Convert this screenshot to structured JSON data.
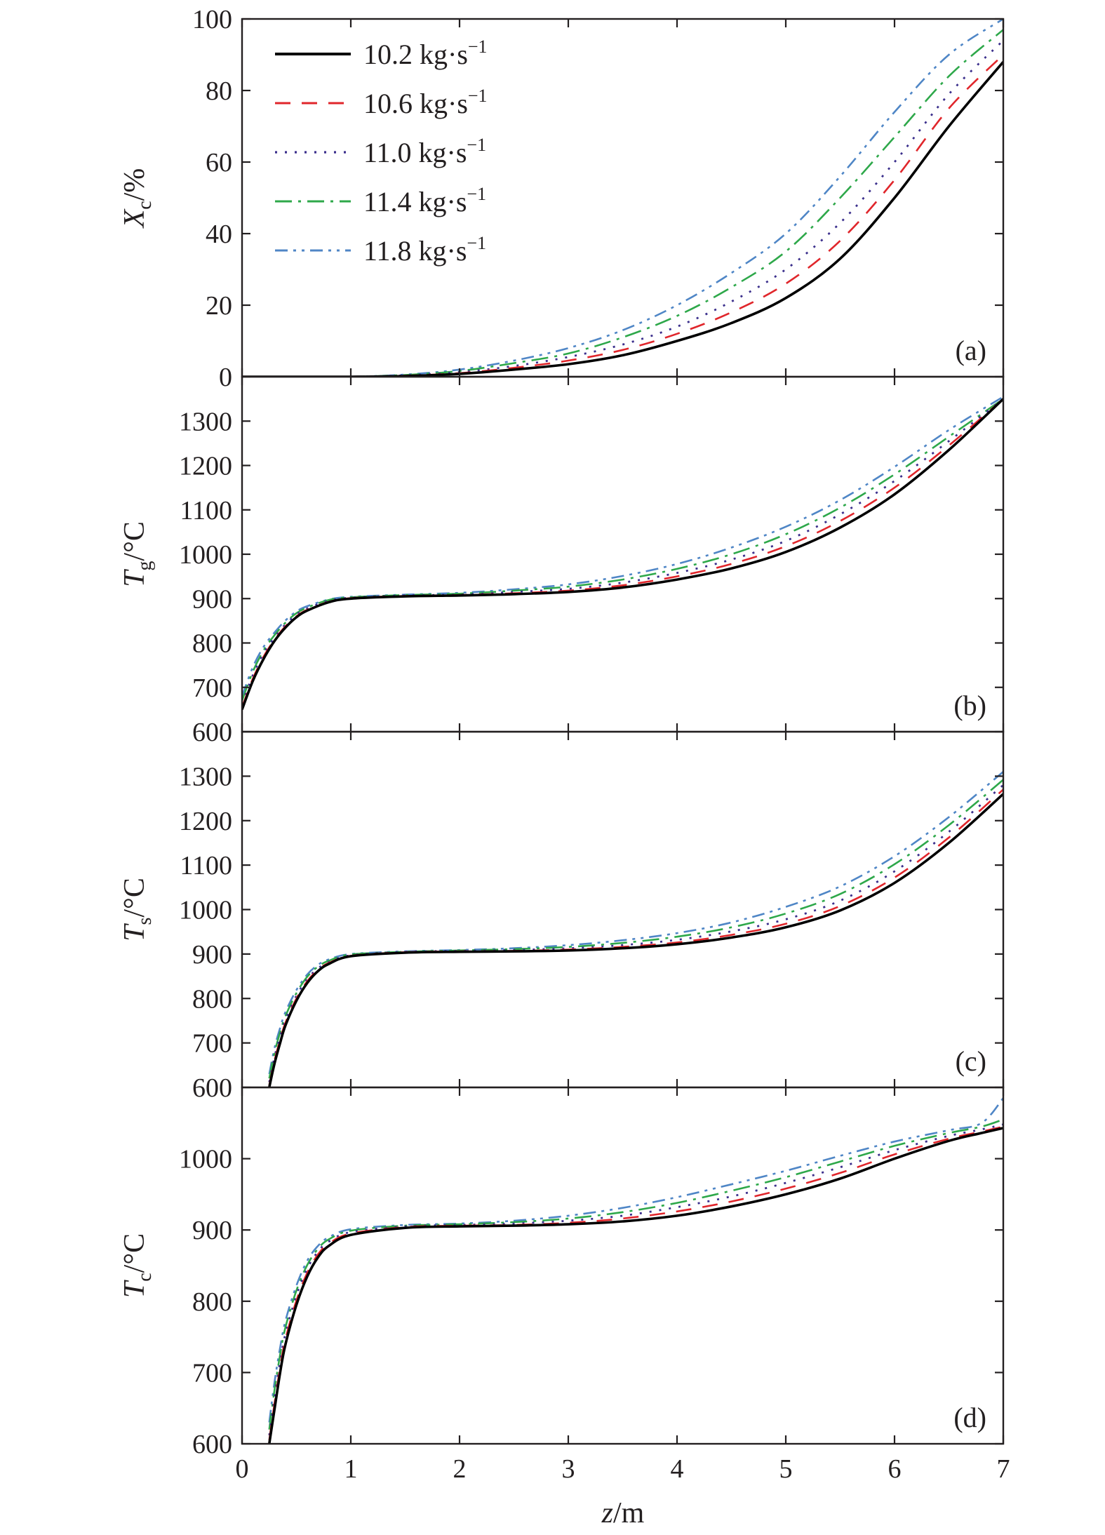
{
  "figure": {
    "xlabel_italic": "z",
    "xlabel_unit": "/m"
  },
  "legend": [
    {
      "value": "10.2 kg·s",
      "exp": "−1"
    },
    {
      "value": "10.6 kg·s",
      "exp": "−1"
    },
    {
      "value": "11.0 kg·s",
      "exp": "−1"
    },
    {
      "value": "11.4 kg·s",
      "exp": "−1"
    },
    {
      "value": "11.8 kg·s",
      "exp": "−1"
    }
  ],
  "colors": {
    "axis": "#231f20",
    "series": [
      "#000000",
      "#e0262b",
      "#3b2f8c",
      "#2ea84a",
      "#4f86c6"
    ]
  },
  "chart_data": [
    {
      "type": "line",
      "panel_label": "(a)",
      "ylabel": {
        "main": "X",
        "sub": "c",
        "unit": "/%"
      },
      "xlim": [
        0,
        7
      ],
      "ylim": [
        0,
        100
      ],
      "xticks": [
        0,
        1,
        2,
        3,
        4,
        5,
        6,
        7
      ],
      "yticks": [
        0,
        20,
        40,
        60,
        80,
        100
      ],
      "x": [
        0,
        0.5,
        1,
        1.5,
        2,
        2.5,
        3,
        3.5,
        4,
        4.5,
        5,
        5.5,
        6,
        6.5,
        7
      ],
      "series": [
        {
          "name": "10.2 kg·s−1",
          "values": [
            0,
            0,
            0,
            0.2,
            0.8,
            2,
            3.5,
            6,
            10,
            15,
            22,
            33,
            50,
            70,
            88
          ]
        },
        {
          "name": "10.6 kg·s−1",
          "values": [
            0,
            0,
            0,
            0.3,
            1.0,
            2.5,
            4.5,
            7.5,
            12,
            18,
            26,
            38,
            55,
            75,
            90
          ]
        },
        {
          "name": "11.0 kg·s−1",
          "values": [
            0,
            0,
            0,
            0.4,
            1.3,
            3,
            5.5,
            9,
            14,
            21,
            30,
            43,
            60,
            79,
            94
          ]
        },
        {
          "name": "11.4 kg·s−1",
          "values": [
            0,
            0,
            0,
            0.5,
            1.6,
            3.8,
            6.5,
            11,
            17,
            25,
            35,
            50,
            67,
            84,
            97
          ]
        },
        {
          "name": "11.8 kg·s−1",
          "values": [
            0,
            0,
            0,
            0.6,
            2.0,
            4.5,
            8,
            13,
            20,
            29,
            40,
            56,
            74,
            90,
            100
          ]
        }
      ]
    },
    {
      "type": "line",
      "panel_label": "(b)",
      "ylabel": {
        "main": "T",
        "sub": "g",
        "unit": "/°C"
      },
      "xlim": [
        0,
        7
      ],
      "ylim": [
        600,
        1400
      ],
      "xticks": [
        0,
        1,
        2,
        3,
        4,
        5,
        6,
        7
      ],
      "yticks": [
        600,
        700,
        800,
        900,
        1000,
        1100,
        1200,
        1300
      ],
      "x": [
        0,
        0.1,
        0.2,
        0.3,
        0.4,
        0.5,
        0.6,
        0.8,
        1.0,
        1.5,
        2,
        2.5,
        3,
        3.5,
        4,
        4.5,
        5,
        5.5,
        6,
        6.5,
        7
      ],
      "series": [
        {
          "name": "10.2 kg·s−1",
          "values": [
            650,
            715,
            765,
            805,
            835,
            858,
            873,
            892,
            900,
            905,
            907,
            910,
            915,
            925,
            943,
            968,
            1005,
            1060,
            1135,
            1235,
            1350
          ]
        },
        {
          "name": "10.6 kg·s−1",
          "values": [
            655,
            720,
            770,
            808,
            838,
            860,
            875,
            893,
            901,
            906,
            908,
            912,
            918,
            930,
            950,
            978,
            1018,
            1075,
            1150,
            1245,
            1350
          ]
        },
        {
          "name": "11.0 kg·s−1",
          "values": [
            662,
            728,
            777,
            813,
            842,
            864,
            878,
            895,
            902,
            907,
            909,
            915,
            922,
            936,
            958,
            988,
            1030,
            1090,
            1165,
            1255,
            1350
          ]
        },
        {
          "name": "11.4 kg·s−1",
          "values": [
            670,
            736,
            784,
            818,
            846,
            867,
            880,
            897,
            903,
            908,
            911,
            918,
            927,
            943,
            967,
            1000,
            1045,
            1105,
            1180,
            1265,
            1350
          ]
        },
        {
          "name": "11.8 kg·s−1",
          "values": [
            680,
            746,
            792,
            824,
            851,
            871,
            883,
            898,
            904,
            909,
            913,
            921,
            932,
            951,
            978,
            1015,
            1062,
            1122,
            1197,
            1280,
            1355
          ]
        }
      ]
    },
    {
      "type": "line",
      "panel_label": "(c)",
      "ylabel": {
        "main": "T",
        "sub": "s",
        "unit": "/°C"
      },
      "xlim": [
        0,
        7
      ],
      "ylim": [
        600,
        1400
      ],
      "xticks": [
        0,
        1,
        2,
        3,
        4,
        5,
        6,
        7
      ],
      "yticks": [
        600,
        700,
        800,
        900,
        1000,
        1100,
        1200,
        1300
      ],
      "x": [
        0.25,
        0.3,
        0.35,
        0.4,
        0.5,
        0.6,
        0.7,
        0.8,
        1.0,
        1.5,
        2,
        2.5,
        3,
        3.5,
        4,
        4.5,
        5,
        5.5,
        6,
        6.5,
        7
      ],
      "series": [
        {
          "name": "10.2 kg·s−1",
          "values": [
            600,
            655,
            700,
            740,
            795,
            835,
            862,
            878,
            895,
            903,
            905,
            906,
            908,
            913,
            922,
            937,
            960,
            998,
            1060,
            1150,
            1260
          ]
        },
        {
          "name": "10.6 kg·s−1",
          "values": [
            605,
            662,
            707,
            746,
            800,
            839,
            865,
            880,
            896,
            904,
            906,
            907,
            910,
            916,
            926,
            943,
            968,
            1008,
            1072,
            1162,
            1270
          ]
        },
        {
          "name": "11.0 kg·s−1",
          "values": [
            612,
            670,
            715,
            753,
            806,
            844,
            868,
            882,
            897,
            905,
            907,
            909,
            913,
            920,
            932,
            951,
            978,
            1020,
            1086,
            1175,
            1280
          ]
        },
        {
          "name": "11.4 kg·s−1",
          "values": [
            620,
            679,
            724,
            761,
            812,
            849,
            872,
            885,
            899,
            905,
            908,
            911,
            916,
            925,
            939,
            960,
            991,
            1035,
            1102,
            1190,
            1292
          ]
        },
        {
          "name": "11.8 kg·s−1",
          "values": [
            630,
            690,
            734,
            770,
            819,
            854,
            876,
            888,
            900,
            906,
            909,
            913,
            920,
            931,
            947,
            971,
            1006,
            1052,
            1120,
            1208,
            1310
          ]
        }
      ]
    },
    {
      "type": "line",
      "panel_label": "(d)",
      "ylabel": {
        "main": "T",
        "sub": "c",
        "unit": "/°C"
      },
      "xlim": [
        0,
        7
      ],
      "ylim": [
        600,
        1100
      ],
      "xticks": [
        0,
        1,
        2,
        3,
        4,
        5,
        6,
        7
      ],
      "yticks": [
        600,
        700,
        800,
        900,
        1000
      ],
      "x": [
        0.25,
        0.3,
        0.35,
        0.4,
        0.5,
        0.6,
        0.7,
        0.8,
        1.0,
        1.5,
        2,
        2.5,
        3,
        3.5,
        4,
        4.5,
        5,
        5.5,
        6,
        6.5,
        6.8,
        7
      ],
      "series": [
        {
          "name": "10.2 kg·s−1",
          "values": [
            600,
            650,
            700,
            740,
            795,
            835,
            862,
            878,
            893,
            903,
            905,
            906,
            908,
            912,
            920,
            933,
            950,
            972,
            1000,
            1025,
            1036,
            1043
          ]
        },
        {
          "name": "10.6 kg·s−1",
          "values": [
            605,
            658,
            707,
            747,
            801,
            840,
            866,
            881,
            895,
            904,
            906,
            907,
            910,
            916,
            926,
            940,
            958,
            980,
            1006,
            1028,
            1038,
            1045
          ]
        },
        {
          "name": "11.0 kg·s−1",
          "values": [
            612,
            667,
            716,
            755,
            808,
            846,
            870,
            884,
            897,
            905,
            907,
            909,
            913,
            920,
            932,
            947,
            966,
            988,
            1012,
            1032,
            1041,
            1048
          ]
        },
        {
          "name": "11.4 kg·s−1",
          "values": [
            620,
            677,
            725,
            764,
            815,
            851,
            874,
            887,
            899,
            906,
            908,
            911,
            916,
            925,
            938,
            955,
            974,
            996,
            1018,
            1036,
            1045,
            1055
          ]
        },
        {
          "name": "11.8 kg·s−1",
          "values": [
            630,
            688,
            735,
            773,
            822,
            857,
            878,
            890,
            901,
            907,
            909,
            913,
            920,
            931,
            946,
            964,
            983,
            1004,
            1024,
            1040,
            1050,
            1085
          ]
        }
      ]
    }
  ]
}
